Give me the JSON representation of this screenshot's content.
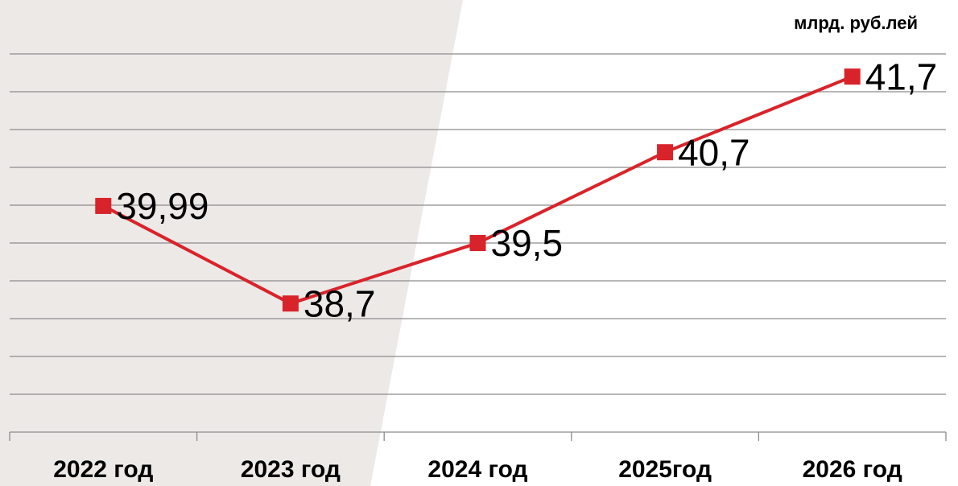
{
  "chart_data": {
    "type": "line",
    "y_label": "млрд. руб.лей",
    "categories": [
      "2022 год",
      "2023 год",
      "2024 год",
      "2025год",
      "2026 год"
    ],
    "series": [
      {
        "name": null,
        "color": "#d9232a",
        "values": [
          39.99,
          38.7,
          39.5,
          40.7,
          41.7
        ],
        "value_labels": [
          "39,99",
          "38,7",
          "39,5",
          "40,7",
          "41,7"
        ]
      }
    ],
    "ylim": [
      37,
      42
    ],
    "yticks": [
      37,
      37.5,
      38,
      38.5,
      39,
      39.5,
      40,
      40.5,
      41,
      41.5,
      42
    ],
    "grid": true
  }
}
